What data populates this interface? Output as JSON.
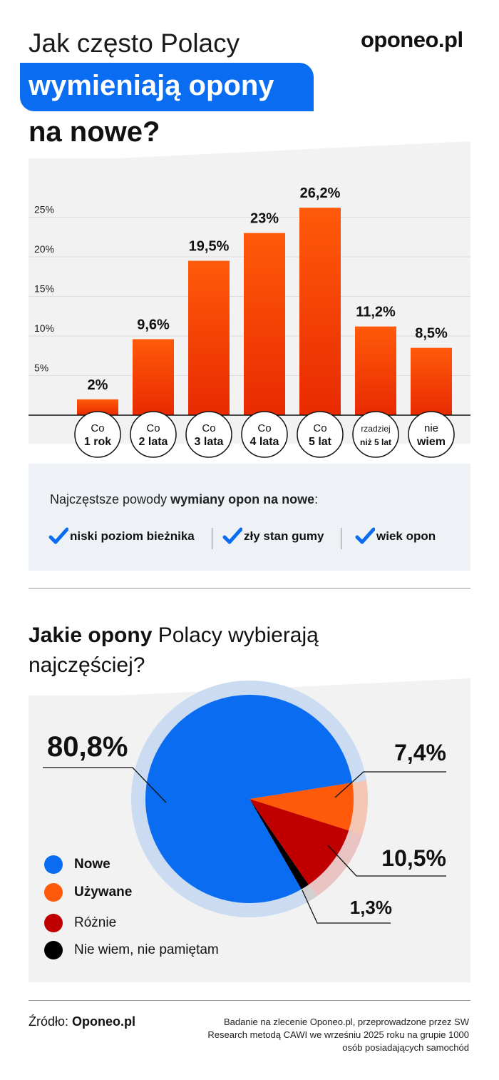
{
  "header": {
    "title_line1": "Jak często Polacy",
    "title_line2": "wymieniają opony",
    "title_line3": "na nowe?",
    "brand": "oponeo.pl"
  },
  "chart_data": [
    {
      "type": "bar",
      "categories": [
        [
          "Co",
          "1 rok"
        ],
        [
          "Co",
          "2 lata"
        ],
        [
          "Co",
          "3 lata"
        ],
        [
          "Co",
          "4 lata"
        ],
        [
          "Co",
          "5 lat"
        ],
        [
          "rzadziej",
          "niż 5 lat"
        ],
        [
          "nie",
          "wiem"
        ]
      ],
      "values": [
        2,
        9.6,
        19.5,
        23,
        26.2,
        11.2,
        8.5
      ],
      "value_labels": [
        "2%",
        "9,6%",
        "19,5%",
        "23%",
        "26,2%",
        "11,2%",
        "8,5%"
      ],
      "yticks": [
        "5%",
        "10%",
        "15%",
        "20%",
        "25%"
      ],
      "ytick_values": [
        5,
        10,
        15,
        20,
        25
      ],
      "ylim": [
        0,
        30
      ],
      "grid": true
    },
    {
      "type": "pie",
      "slices": [
        {
          "label": "Nowe",
          "value": 80.8,
          "value_label": "80,8%",
          "color": "#0a6cf0"
        },
        {
          "label": "Używane",
          "value": 7.4,
          "value_label": "7,4%",
          "color": "#ff5a0a"
        },
        {
          "label": "Różnie",
          "value": 10.5,
          "value_label": "10,5%",
          "color": "#c00000"
        },
        {
          "label": "Nie wiem, nie pamiętam",
          "value": 1.3,
          "value_label": "1,3%",
          "color": "#000000"
        }
      ]
    }
  ],
  "reasons": {
    "title_prefix": "Najczęstsze powody ",
    "title_bold": "wymiany opon na nowe",
    "title_suffix": ":",
    "items": [
      "niski poziom bieżnika",
      "zły stan gumy",
      "wiek opon"
    ],
    "check_color": "#0a6cf0"
  },
  "pie_section": {
    "title_bold": "Jakie opony",
    "title_rest": " Polacy wybierają najczęściej?"
  },
  "footer": {
    "source_prefix": "Źródło: ",
    "source_bold": "Oponeo.pl",
    "note": "Badanie na zlecenie Oponeo.pl, przeprowadzone przez SW Research metodą CAWI we wrześniu 2025 roku na grupie 1000 osób posiadających samochód"
  },
  "colors": {
    "accent": "#0a6cf0",
    "bar_top": "#ff5a0a",
    "bar_bottom": "#e82a00"
  }
}
